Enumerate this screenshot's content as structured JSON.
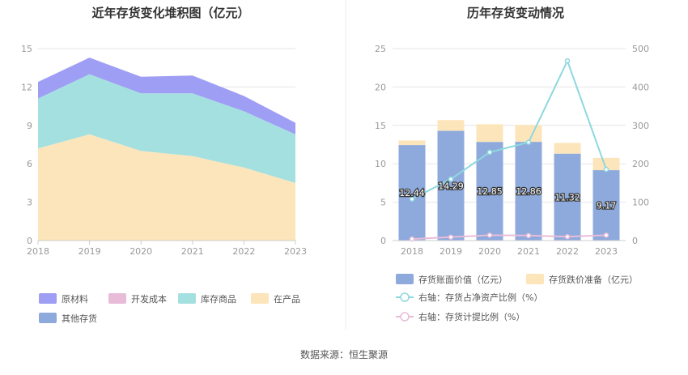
{
  "source_text": "数据来源：恒生聚源",
  "chart_data": [
    {
      "type": "area",
      "stacked": true,
      "title": "近年存货变化堆积图（亿元）",
      "categories": [
        "2018",
        "2019",
        "2020",
        "2021",
        "2022",
        "2023"
      ],
      "ylim": [
        0,
        15
      ],
      "yticks": [
        "0",
        "3",
        "6",
        "9",
        "12",
        "15"
      ],
      "grid": true,
      "legend_position": "bottom",
      "series": [
        {
          "name": "其他存货",
          "color": "#8eaadc",
          "values": [
            0,
            0,
            0,
            0,
            0,
            0
          ]
        },
        {
          "name": "在产品",
          "color": "#fde5bb",
          "values": [
            7.2,
            8.3,
            7.0,
            6.6,
            5.7,
            4.5
          ]
        },
        {
          "name": "库存商品",
          "color": "#a5e0e0",
          "values": [
            3.9,
            4.7,
            4.5,
            4.9,
            4.4,
            3.8
          ]
        },
        {
          "name": "开发成本",
          "color": "#e8bcd8",
          "values": [
            0,
            0,
            0,
            0,
            0,
            0
          ]
        },
        {
          "name": "原材料",
          "color": "#9f9ef5",
          "values": [
            1.3,
            1.3,
            1.3,
            1.4,
            1.2,
            0.9
          ]
        }
      ],
      "legend_order": [
        "原材料",
        "开发成本",
        "库存商品",
        "在产品",
        "其他存货"
      ]
    },
    {
      "type": "bar",
      "stacked": true,
      "title": "历年存货变动情况",
      "categories": [
        "2018",
        "2019",
        "2020",
        "2021",
        "2022",
        "2023"
      ],
      "ylim": [
        0,
        25
      ],
      "yticks": [
        "0",
        "5",
        "10",
        "15",
        "20",
        "25"
      ],
      "y2lim": [
        0,
        500
      ],
      "y2ticks": [
        "0",
        "100",
        "200",
        "300",
        "400",
        "500"
      ],
      "grid": true,
      "legend_position": "bottom",
      "series": [
        {
          "name": "存货账面价值（亿元）",
          "color": "#8eaadc",
          "values": [
            12.44,
            14.29,
            12.85,
            12.86,
            11.32,
            9.17
          ],
          "labels": [
            "12.44",
            "14.29",
            "12.85",
            "12.86",
            "11.32",
            "9.17"
          ]
        },
        {
          "name": "存货跌价准备（亿元）",
          "color": "#fde5bb",
          "values": [
            0.6,
            1.4,
            2.3,
            2.2,
            1.4,
            1.6
          ]
        }
      ],
      "line_series": [
        {
          "name": "右轴：存货占净资产比例（%）",
          "color": "#8dd8de",
          "axis": "right",
          "values": [
            108,
            160,
            230,
            256,
            468,
            185
          ]
        },
        {
          "name": "右轴：存货计提比例（%）",
          "color": "#e8bcd8",
          "axis": "right",
          "values": [
            4,
            9,
            14,
            13,
            10,
            14
          ]
        }
      ]
    }
  ]
}
